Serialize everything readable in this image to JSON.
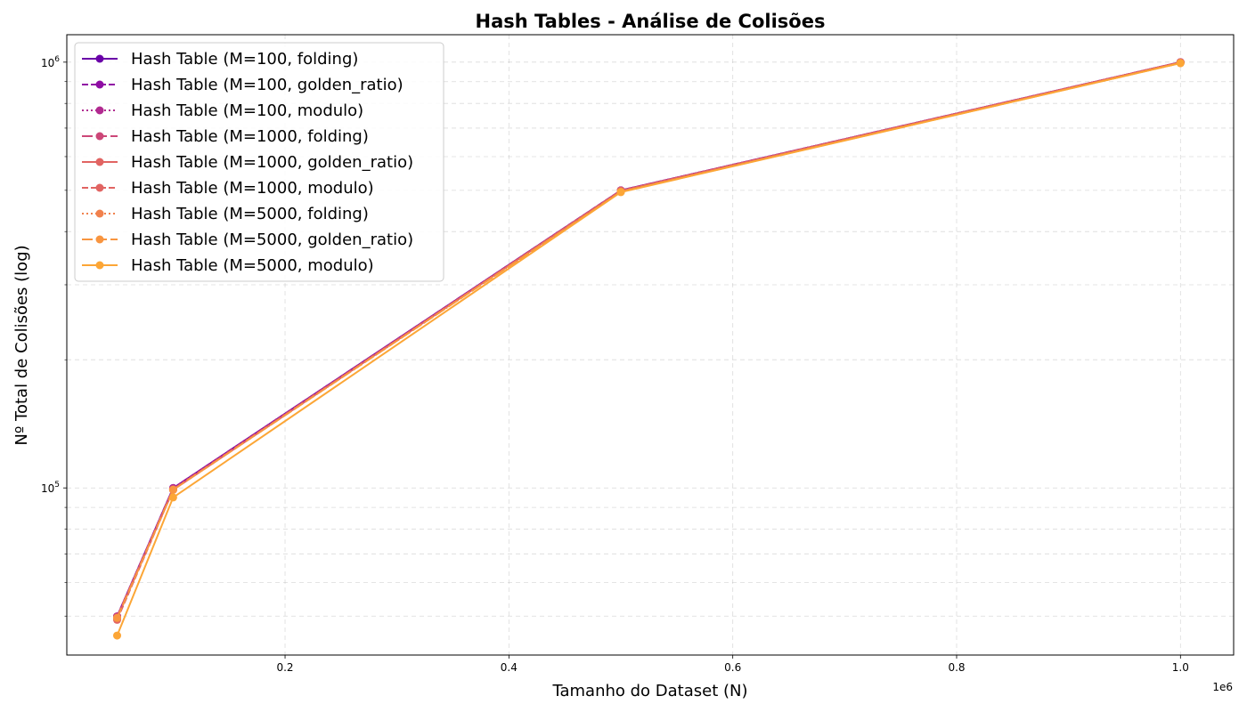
{
  "chart_data": {
    "type": "line",
    "title": "Hash Tables - Análise de Colisões",
    "xlabel": "Tamanho do Dataset (N)",
    "ylabel": "Nº Total de Colisões (log)",
    "x_offset_label": "1e6",
    "x_scale": "linear",
    "y_scale": "log",
    "xlim": [
      5000,
      1047500
    ],
    "ylim": [
      40500,
      1160000
    ],
    "x_ticks": [
      {
        "value": 200000,
        "label": "0.2"
      },
      {
        "value": 400000,
        "label": "0.4"
      },
      {
        "value": 600000,
        "label": "0.6"
      },
      {
        "value": 800000,
        "label": "0.8"
      },
      {
        "value": 1000000,
        "label": "1.0"
      }
    ],
    "y_major_ticks": [
      {
        "value": 100000,
        "base": "10",
        "exp": "5"
      },
      {
        "value": 1000000,
        "base": "10",
        "exp": "6"
      }
    ],
    "y_minor_ticks": [
      50000,
      60000,
      70000,
      80000,
      90000,
      200000,
      300000,
      400000,
      500000,
      600000,
      700000,
      800000,
      900000
    ],
    "grid": true,
    "legend_position": "top-left",
    "x": [
      50000,
      100000,
      500000,
      1000000
    ],
    "series": [
      {
        "name": "Hash Table (M=100, folding)",
        "values": [
          49900,
          99900,
          499900,
          999900
        ],
        "color": "#6a00a8",
        "dash": ""
      },
      {
        "name": "Hash Table (M=100, golden_ratio)",
        "values": [
          49900,
          99900,
          499900,
          999900
        ],
        "color": "#8f0da4",
        "dash": "7,3"
      },
      {
        "name": "Hash Table (M=100, modulo)",
        "values": [
          49900,
          99900,
          499900,
          999900
        ],
        "color": "#b12a90",
        "dash": "2,3"
      },
      {
        "name": "Hash Table (M=1000, folding)",
        "values": [
          49850,
          99400,
          499100,
          999000
        ],
        "color": "#cc4778",
        "dash": "12,4"
      },
      {
        "name": "Hash Table (M=1000, golden_ratio)",
        "values": [
          49400,
          99050,
          499000,
          999000
        ],
        "color": "#e16462",
        "dash": ""
      },
      {
        "name": "Hash Table (M=1000, modulo)",
        "values": [
          49000,
          99000,
          499000,
          999000
        ],
        "color": "#e16462",
        "dash": "7,3"
      },
      {
        "name": "Hash Table (M=5000, folding)",
        "values": [
          49500,
          99000,
          496000,
          995500
        ],
        "color": "#f1814d",
        "dash": "2,3"
      },
      {
        "name": "Hash Table (M=5000, golden_ratio)",
        "values": [
          49500,
          99000,
          495800,
          995000
        ],
        "color": "#f89540",
        "dash": "12,4"
      },
      {
        "name": "Hash Table (M=5000, modulo)",
        "values": [
          45000,
          95000,
          495000,
          995000
        ],
        "color": "#fca636",
        "dash": ""
      }
    ]
  }
}
